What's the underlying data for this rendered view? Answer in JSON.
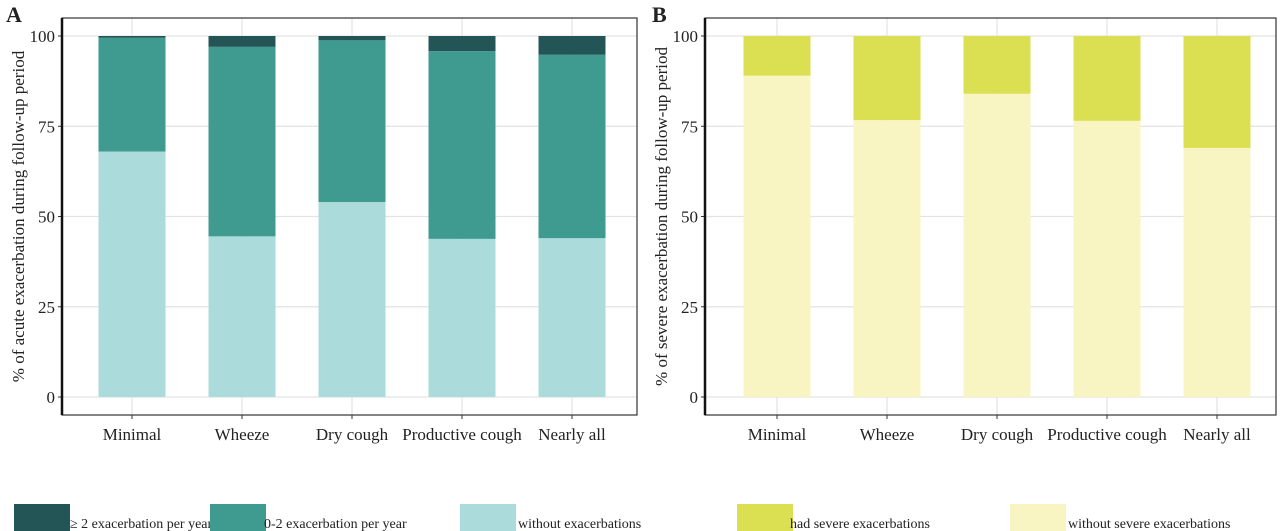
{
  "chart_data": [
    {
      "type": "bar",
      "stacked": true,
      "panel_label": "A",
      "ylabel": "% of acute exacerbation during follow-up period",
      "ylim": [
        0,
        100
      ],
      "yticks": [
        0,
        25,
        50,
        75,
        100
      ],
      "grid": true,
      "categories": [
        "Minimal",
        "Wheeze",
        "Dry cough",
        "Productive cough",
        "Nearly all"
      ],
      "series": [
        {
          "name": "without exacerbations",
          "color": "#abdbdb",
          "values": [
            68,
            44.5,
            54,
            43.8,
            44
          ]
        },
        {
          "name": "0-2 exacerbation per year",
          "color": "#3f9a8f",
          "values": [
            31.5,
            52.5,
            44.8,
            52,
            50.8
          ]
        },
        {
          "name": "≥ 2 exacerbation per year",
          "color": "#245556",
          "values": [
            0.5,
            3,
            1.2,
            4.2,
            5.2
          ]
        }
      ],
      "legend": {
        "placement": "bottom",
        "order": [
          "≥ 2 exacerbation per year",
          "0-2 exacerbation per year",
          "without exacerbations"
        ]
      }
    },
    {
      "type": "bar",
      "stacked": true,
      "panel_label": "B",
      "ylabel": "% of severe exacerbation during follow-up period",
      "ylim": [
        0,
        100
      ],
      "yticks": [
        0,
        25,
        50,
        75,
        100
      ],
      "grid": true,
      "categories": [
        "Minimal",
        "Wheeze",
        "Dry cough",
        "Productive cough",
        "Nearly all"
      ],
      "series": [
        {
          "name": "without severe exacerbations",
          "color": "#f8f5c2",
          "values": [
            89,
            76.7,
            84,
            76.5,
            69
          ]
        },
        {
          "name": "had severe exacerbations",
          "color": "#dbe053",
          "values": [
            11,
            23.3,
            16,
            23.5,
            31
          ]
        }
      ],
      "legend": {
        "placement": "bottom",
        "order": [
          "had severe exacerbations",
          "without severe exacerbations"
        ]
      }
    }
  ]
}
